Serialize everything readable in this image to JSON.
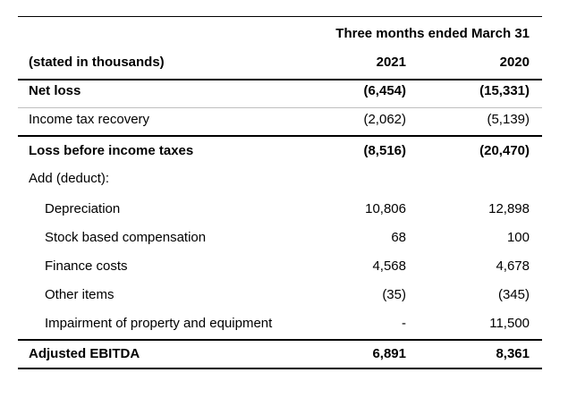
{
  "table": {
    "group_header": "Three months ended March 31",
    "unit_label": "(stated in thousands)",
    "columns": [
      "2021",
      "2020"
    ],
    "rows": [
      {
        "label": "Net loss",
        "v2021": "(6,454)",
        "v2020": "(15,331)",
        "bold": true,
        "indent": false
      },
      {
        "label": "Income tax recovery",
        "v2021": "(2,062)",
        "v2020": "(5,139)",
        "bold": false,
        "indent": false
      },
      {
        "label": "Loss before income taxes",
        "v2021": "(8,516)",
        "v2020": "(20,470)",
        "bold": true,
        "indent": false
      },
      {
        "label": "Add (deduct):",
        "v2021": "",
        "v2020": "",
        "bold": false,
        "indent": false
      },
      {
        "label": "Depreciation",
        "v2021": "10,806",
        "v2020": "12,898",
        "bold": false,
        "indent": true
      },
      {
        "label": "Stock based compensation",
        "v2021": "68",
        "v2020": "100",
        "bold": false,
        "indent": true
      },
      {
        "label": "Finance costs",
        "v2021": "4,568",
        "v2020": "4,678",
        "bold": false,
        "indent": true
      },
      {
        "label": "Other items",
        "v2021": "(35)",
        "v2020": "(345)",
        "bold": false,
        "indent": true
      },
      {
        "label": "Impairment of property and equipment",
        "v2021": "-",
        "v2020": "11,500",
        "bold": false,
        "indent": true
      },
      {
        "label": "Adjusted EBITDA",
        "v2021": "6,891",
        "v2020": "8,361",
        "bold": true,
        "indent": false
      }
    ]
  }
}
